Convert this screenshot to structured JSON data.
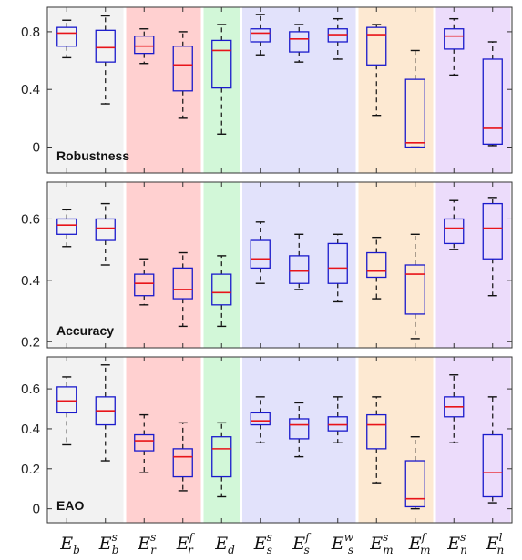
{
  "chart_data": {
    "type": "box",
    "categories": [
      {
        "base": "E",
        "sub": "b",
        "sup": ""
      },
      {
        "base": "E",
        "sub": "b",
        "sup": "s"
      },
      {
        "base": "E",
        "sub": "r",
        "sup": "s"
      },
      {
        "base": "E",
        "sub": "r",
        "sup": "f"
      },
      {
        "base": "E",
        "sub": "d",
        "sup": ""
      },
      {
        "base": "E",
        "sub": "s",
        "sup": "s"
      },
      {
        "base": "E",
        "sub": "s",
        "sup": "f"
      },
      {
        "base": "E",
        "sub": "s",
        "sup": "w"
      },
      {
        "base": "E",
        "sub": "m",
        "sup": "s"
      },
      {
        "base": "E",
        "sub": "m",
        "sup": "f"
      },
      {
        "base": "E",
        "sub": "n",
        "sup": "s"
      },
      {
        "base": "E",
        "sub": "n",
        "sup": "l"
      }
    ],
    "groups": [
      {
        "from": 0,
        "to": 1,
        "color": "#f2f2f2"
      },
      {
        "from": 2,
        "to": 3,
        "color": "#ffd0d0"
      },
      {
        "from": 4,
        "to": 4,
        "color": "#d2f7d8"
      },
      {
        "from": 5,
        "to": 7,
        "color": "#e2e2fb"
      },
      {
        "from": 8,
        "to": 9,
        "color": "#fde9d2"
      },
      {
        "from": 10,
        "to": 11,
        "color": "#ecdcfb"
      }
    ],
    "colors": {
      "box": "#1a1acc",
      "median": "#e8141a",
      "whisker": "#111111",
      "axis": "#333333"
    },
    "panels": [
      {
        "title": "Robustness",
        "ylim": [
          -0.18,
          0.97
        ],
        "yticks": [
          0,
          0.4,
          0.8
        ],
        "ytick_labels": [
          "0",
          "0.4",
          "0.8"
        ],
        "boxes": [
          {
            "min": 0.62,
            "q1": 0.7,
            "median": 0.79,
            "q3": 0.83,
            "max": 0.88
          },
          {
            "min": 0.3,
            "q1": 0.59,
            "median": 0.69,
            "q3": 0.81,
            "max": 0.91
          },
          {
            "min": 0.58,
            "q1": 0.65,
            "median": 0.7,
            "q3": 0.77,
            "max": 0.82
          },
          {
            "min": 0.2,
            "q1": 0.39,
            "median": 0.57,
            "q3": 0.7,
            "max": 0.8
          },
          {
            "min": 0.09,
            "q1": 0.41,
            "median": 0.67,
            "q3": 0.74,
            "max": 0.85
          },
          {
            "min": 0.64,
            "q1": 0.73,
            "median": 0.79,
            "q3": 0.82,
            "max": 0.92
          },
          {
            "min": 0.59,
            "q1": 0.66,
            "median": 0.75,
            "q3": 0.8,
            "max": 0.85
          },
          {
            "min": 0.61,
            "q1": 0.73,
            "median": 0.78,
            "q3": 0.82,
            "max": 0.89
          },
          {
            "min": 0.22,
            "q1": 0.57,
            "median": 0.78,
            "q3": 0.83,
            "max": 0.85
          },
          {
            "min": 0.0,
            "q1": 0.0,
            "median": 0.03,
            "q3": 0.47,
            "max": 0.67
          },
          {
            "min": 0.5,
            "q1": 0.68,
            "median": 0.77,
            "q3": 0.82,
            "max": 0.89
          },
          {
            "min": 0.01,
            "q1": 0.02,
            "median": 0.13,
            "q3": 0.61,
            "max": 0.73
          }
        ]
      },
      {
        "title": "Accuracy",
        "ylim": [
          0.18,
          0.72
        ],
        "yticks": [
          0.2,
          0.4,
          0.6
        ],
        "ytick_labels": [
          "0.2",
          "0.4",
          "0.6"
        ],
        "boxes": [
          {
            "min": 0.51,
            "q1": 0.55,
            "median": 0.58,
            "q3": 0.6,
            "max": 0.63
          },
          {
            "min": 0.45,
            "q1": 0.53,
            "median": 0.57,
            "q3": 0.6,
            "max": 0.65
          },
          {
            "min": 0.32,
            "q1": 0.35,
            "median": 0.39,
            "q3": 0.42,
            "max": 0.47
          },
          {
            "min": 0.25,
            "q1": 0.34,
            "median": 0.37,
            "q3": 0.44,
            "max": 0.49
          },
          {
            "min": 0.25,
            "q1": 0.32,
            "median": 0.36,
            "q3": 0.42,
            "max": 0.48
          },
          {
            "min": 0.39,
            "q1": 0.44,
            "median": 0.47,
            "q3": 0.53,
            "max": 0.59
          },
          {
            "min": 0.37,
            "q1": 0.39,
            "median": 0.43,
            "q3": 0.48,
            "max": 0.55
          },
          {
            "min": 0.33,
            "q1": 0.39,
            "median": 0.44,
            "q3": 0.52,
            "max": 0.55
          },
          {
            "min": 0.34,
            "q1": 0.41,
            "median": 0.43,
            "q3": 0.49,
            "max": 0.54
          },
          {
            "min": 0.21,
            "q1": 0.29,
            "median": 0.42,
            "q3": 0.45,
            "max": 0.55
          },
          {
            "min": 0.5,
            "q1": 0.52,
            "median": 0.57,
            "q3": 0.6,
            "max": 0.66
          },
          {
            "min": 0.35,
            "q1": 0.47,
            "median": 0.57,
            "q3": 0.65,
            "max": 0.67
          }
        ]
      },
      {
        "title": "EAO",
        "ylim": [
          -0.07,
          0.76
        ],
        "yticks": [
          0,
          0.2,
          0.4,
          0.6
        ],
        "ytick_labels": [
          "0",
          "0.2",
          "0.4",
          "0.6"
        ],
        "boxes": [
          {
            "min": 0.32,
            "q1": 0.48,
            "median": 0.54,
            "q3": 0.61,
            "max": 0.66
          },
          {
            "min": 0.24,
            "q1": 0.42,
            "median": 0.49,
            "q3": 0.56,
            "max": 0.72
          },
          {
            "min": 0.18,
            "q1": 0.29,
            "median": 0.34,
            "q3": 0.37,
            "max": 0.47
          },
          {
            "min": 0.09,
            "q1": 0.16,
            "median": 0.26,
            "q3": 0.3,
            "max": 0.43
          },
          {
            "min": 0.06,
            "q1": 0.16,
            "median": 0.3,
            "q3": 0.36,
            "max": 0.43
          },
          {
            "min": 0.33,
            "q1": 0.42,
            "median": 0.44,
            "q3": 0.48,
            "max": 0.56
          },
          {
            "min": 0.26,
            "q1": 0.35,
            "median": 0.42,
            "q3": 0.45,
            "max": 0.53
          },
          {
            "min": 0.33,
            "q1": 0.39,
            "median": 0.42,
            "q3": 0.46,
            "max": 0.56
          },
          {
            "min": 0.13,
            "q1": 0.3,
            "median": 0.42,
            "q3": 0.47,
            "max": 0.56
          },
          {
            "min": 0.0,
            "q1": 0.01,
            "median": 0.05,
            "q3": 0.24,
            "max": 0.36
          },
          {
            "min": 0.33,
            "q1": 0.46,
            "median": 0.51,
            "q3": 0.56,
            "max": 0.67
          },
          {
            "min": 0.03,
            "q1": 0.06,
            "median": 0.18,
            "q3": 0.37,
            "max": 0.56
          }
        ]
      }
    ]
  }
}
